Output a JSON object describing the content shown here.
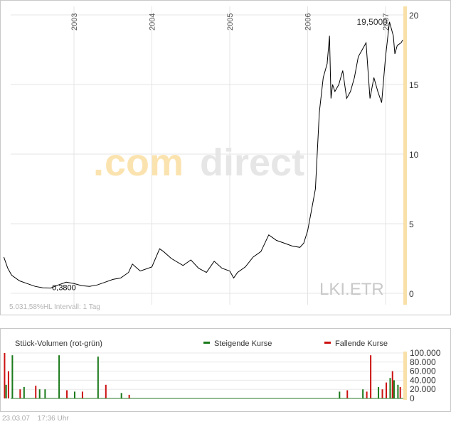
{
  "price_chart": {
    "watermark_dot": ".",
    "watermark_com": "com",
    "watermark_direct": "direct",
    "symbol": "LKI.ETR",
    "footer_left": "5.031,58%HL  Intervall: 1 Tag",
    "max_label": "19,5000",
    "min_label": "0,3800",
    "colors": {
      "line": "#000000",
      "grid": "#e4e4e4",
      "brand_orange": "#fbe3b0",
      "brand_grey": "#e6e6e6",
      "axis_highlight": "#f8e0a8"
    }
  },
  "volume_chart": {
    "title": "Stück-Volumen (rot-grün)",
    "legend_up": "Steigende Kurse",
    "legend_down": "Fallende Kurse",
    "colors": {
      "up": "#1a7a1a",
      "down": "#cc1111"
    }
  },
  "footer": {
    "date": "23.03.07",
    "time": "17:36 Uhr"
  },
  "chart_data": [
    {
      "type": "line",
      "title": "",
      "xlabel": "",
      "ylabel": "",
      "x_ticks": [
        "2003",
        "2004",
        "2005",
        "2006",
        "2007"
      ],
      "y_ticks": [
        "0",
        "5",
        "10",
        "15",
        "20"
      ],
      "ylim": [
        0,
        20.5
      ],
      "grid": true,
      "annotations": [
        {
          "label": "19,5000",
          "value": 19.5
        },
        {
          "label": "0,3800",
          "value": 0.38
        }
      ],
      "series": [
        {
          "x": [
            2002.1,
            2002.15,
            2002.2,
            2002.3,
            2002.4,
            2002.5,
            2002.6,
            2002.7,
            2002.8,
            2002.9,
            2003.0,
            2003.1,
            2003.2,
            2003.3,
            2003.4,
            2003.5,
            2003.6,
            2003.7,
            2003.75,
            2003.85,
            2004.0,
            2004.1,
            2004.15,
            2004.25,
            2004.4,
            2004.5,
            2004.6,
            2004.7,
            2004.8,
            2004.9,
            2005.0,
            2005.05,
            2005.1,
            2005.2,
            2005.3,
            2005.4,
            2005.5,
            2005.6,
            2005.7,
            2005.8,
            2005.9,
            2005.95,
            2006.0,
            2006.05,
            2006.1,
            2006.15,
            2006.2,
            2006.25,
            2006.28,
            2006.3,
            2006.32,
            2006.35,
            2006.4,
            2006.45,
            2006.5,
            2006.55,
            2006.6,
            2006.65,
            2006.7,
            2006.75,
            2006.8,
            2006.85,
            2006.9,
            2006.95,
            2007.0,
            2007.05,
            2007.1,
            2007.12,
            2007.15,
            2007.2,
            2007.22
          ],
          "y": [
            2.6,
            1.8,
            1.3,
            0.9,
            0.7,
            0.5,
            0.4,
            0.38,
            0.6,
            0.8,
            0.7,
            0.55,
            0.5,
            0.6,
            0.8,
            1.0,
            1.1,
            1.5,
            2.1,
            1.6,
            1.9,
            3.2,
            3.0,
            2.5,
            2.0,
            2.4,
            1.8,
            1.5,
            2.3,
            1.8,
            1.6,
            1.1,
            1.5,
            1.9,
            2.6,
            3.0,
            4.2,
            3.8,
            3.6,
            3.4,
            3.3,
            3.6,
            4.5,
            6.0,
            7.5,
            13.0,
            15.5,
            16.5,
            18.5,
            14.0,
            15.0,
            14.5,
            15.0,
            16.0,
            14.0,
            14.5,
            15.5,
            17.0,
            17.5,
            18.0,
            14.0,
            15.5,
            14.5,
            13.7,
            17.0,
            19.5,
            18.5,
            17.2,
            17.8,
            18.0,
            18.2
          ]
        }
      ]
    },
    {
      "type": "bar",
      "title": "Stück-Volumen (rot-grün)",
      "y_ticks": [
        "0",
        "20.000",
        "40.000",
        "60.000",
        "80.000",
        "100.000"
      ],
      "ylim": [
        0,
        100000
      ],
      "series": [
        {
          "name": "Steigende Kurse",
          "x": [
            2002.12,
            2002.2,
            2002.35,
            2002.55,
            2002.62,
            2002.8,
            2003.0,
            2003.3,
            2003.6,
            2006.4,
            2006.7,
            2006.9,
            2007.05,
            2007.1,
            2007.15
          ],
          "values": [
            30000,
            95000,
            25000,
            20000,
            20000,
            95000,
            15000,
            92000,
            12000,
            15000,
            20000,
            25000,
            45000,
            40000,
            30000
          ]
        },
        {
          "name": "Fallende Kurse",
          "x": [
            2002.1,
            2002.15,
            2002.3,
            2002.5,
            2002.9,
            2003.1,
            2003.4,
            2003.7,
            2006.5,
            2006.75,
            2006.8,
            2006.95,
            2007.0,
            2007.08,
            2007.18
          ],
          "values": [
            100000,
            60000,
            20000,
            28000,
            18000,
            15000,
            30000,
            8000,
            18000,
            15000,
            95000,
            20000,
            35000,
            60000,
            25000
          ]
        }
      ]
    }
  ]
}
